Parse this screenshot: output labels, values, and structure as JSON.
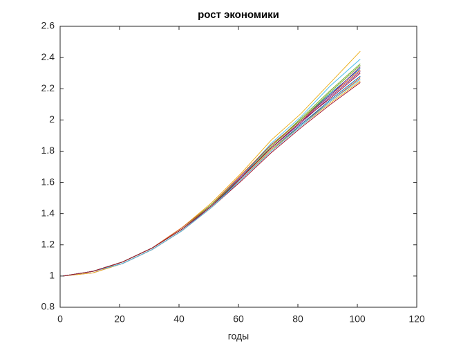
{
  "chart_data": {
    "type": "line",
    "title": "рост экономики",
    "xlabel": "годы",
    "x": [
      1,
      11,
      21,
      31,
      41,
      51,
      61,
      71,
      81,
      91,
      101
    ],
    "xlim": [
      0,
      120
    ],
    "xticks": [
      0,
      20,
      40,
      60,
      80,
      100,
      120
    ],
    "ylim": [
      0.8,
      2.6
    ],
    "yticks": [
      0.8,
      1,
      1.2,
      1.4,
      1.6,
      1.8,
      2,
      2.2,
      2.4,
      2.6
    ],
    "series": [
      {
        "color": "#0072BD",
        "values": [
          1,
          1.03,
          1.09,
          1.18,
          1.3,
          1.46,
          1.64,
          1.84,
          2.0,
          2.17,
          2.33
        ]
      },
      {
        "color": "#D95319",
        "values": [
          1,
          1.03,
          1.08,
          1.17,
          1.29,
          1.44,
          1.62,
          1.8,
          1.97,
          2.12,
          2.27
        ]
      },
      {
        "color": "#EDB120",
        "values": [
          1,
          1.03,
          1.09,
          1.18,
          1.31,
          1.47,
          1.66,
          1.87,
          2.04,
          2.24,
          2.44
        ]
      },
      {
        "color": "#7E2F8E",
        "values": [
          1,
          1.02,
          1.08,
          1.17,
          1.29,
          1.45,
          1.63,
          1.82,
          1.98,
          2.15,
          2.31
        ]
      },
      {
        "color": "#77AC30",
        "values": [
          1,
          1.03,
          1.09,
          1.18,
          1.3,
          1.45,
          1.63,
          1.83,
          2.01,
          2.19,
          2.36
        ]
      },
      {
        "color": "#4DBEEE",
        "values": [
          1,
          1.03,
          1.09,
          1.18,
          1.3,
          1.46,
          1.64,
          1.85,
          2.02,
          2.22,
          2.39
        ]
      },
      {
        "color": "#A2142F",
        "values": [
          1,
          1.03,
          1.08,
          1.17,
          1.29,
          1.44,
          1.61,
          1.79,
          1.95,
          2.1,
          2.24
        ]
      },
      {
        "color": "#0072BD",
        "values": [
          1,
          1.03,
          1.09,
          1.18,
          1.3,
          1.45,
          1.62,
          1.81,
          1.97,
          2.13,
          2.28
        ]
      },
      {
        "color": "#D95319",
        "values": [
          1,
          1.03,
          1.09,
          1.18,
          1.31,
          1.46,
          1.65,
          1.84,
          2.0,
          2.16,
          2.32
        ]
      },
      {
        "color": "#EDB120",
        "values": [
          1,
          1.02,
          1.08,
          1.17,
          1.29,
          1.44,
          1.62,
          1.81,
          1.96,
          2.11,
          2.25
        ]
      },
      {
        "color": "#7E2F8E",
        "values": [
          1,
          1.03,
          1.09,
          1.18,
          1.3,
          1.45,
          1.64,
          1.82,
          1.99,
          2.16,
          2.34
        ]
      },
      {
        "color": "#77AC30",
        "values": [
          1,
          1.03,
          1.09,
          1.18,
          1.3,
          1.46,
          1.63,
          1.83,
          2.0,
          2.18,
          2.35
        ]
      },
      {
        "color": "#4DBEEE",
        "values": [
          1,
          1.03,
          1.08,
          1.17,
          1.29,
          1.44,
          1.62,
          1.8,
          1.96,
          2.12,
          2.26
        ]
      },
      {
        "color": "#A2142F",
        "values": [
          1,
          1.03,
          1.09,
          1.18,
          1.3,
          1.45,
          1.63,
          1.82,
          1.99,
          2.14,
          2.3
        ]
      }
    ]
  }
}
